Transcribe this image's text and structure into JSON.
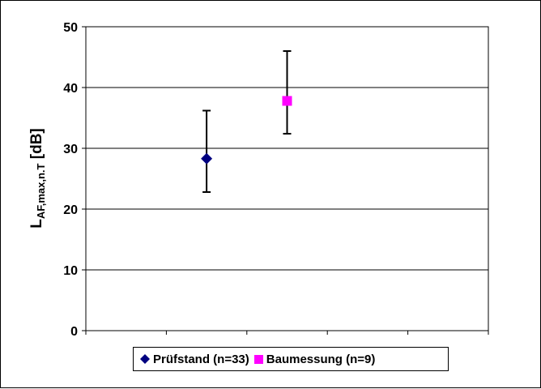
{
  "chart_data": {
    "type": "scatter",
    "title": "",
    "xlabel": "",
    "ylabel": {
      "main": "L",
      "sub": "AF,max,n.T",
      "unit": " [dB]"
    },
    "ylim": [
      0,
      50
    ],
    "yticks": [
      "0",
      "10",
      "20",
      "30",
      "40",
      "50"
    ],
    "x_categories": 5,
    "grid": "horizontal",
    "legend_position": "bottom",
    "series": [
      {
        "name": "Prüfstand (n=33)",
        "marker": "diamond",
        "color": "#000080",
        "x": 2,
        "y": 28.3,
        "err_low": 22.8,
        "err_high": 36.2
      },
      {
        "name": "Baumessung (n=9)",
        "marker": "square",
        "color": "#ff00ff",
        "x": 3,
        "y": 37.8,
        "err_low": 32.4,
        "err_high": 46.0
      }
    ]
  }
}
